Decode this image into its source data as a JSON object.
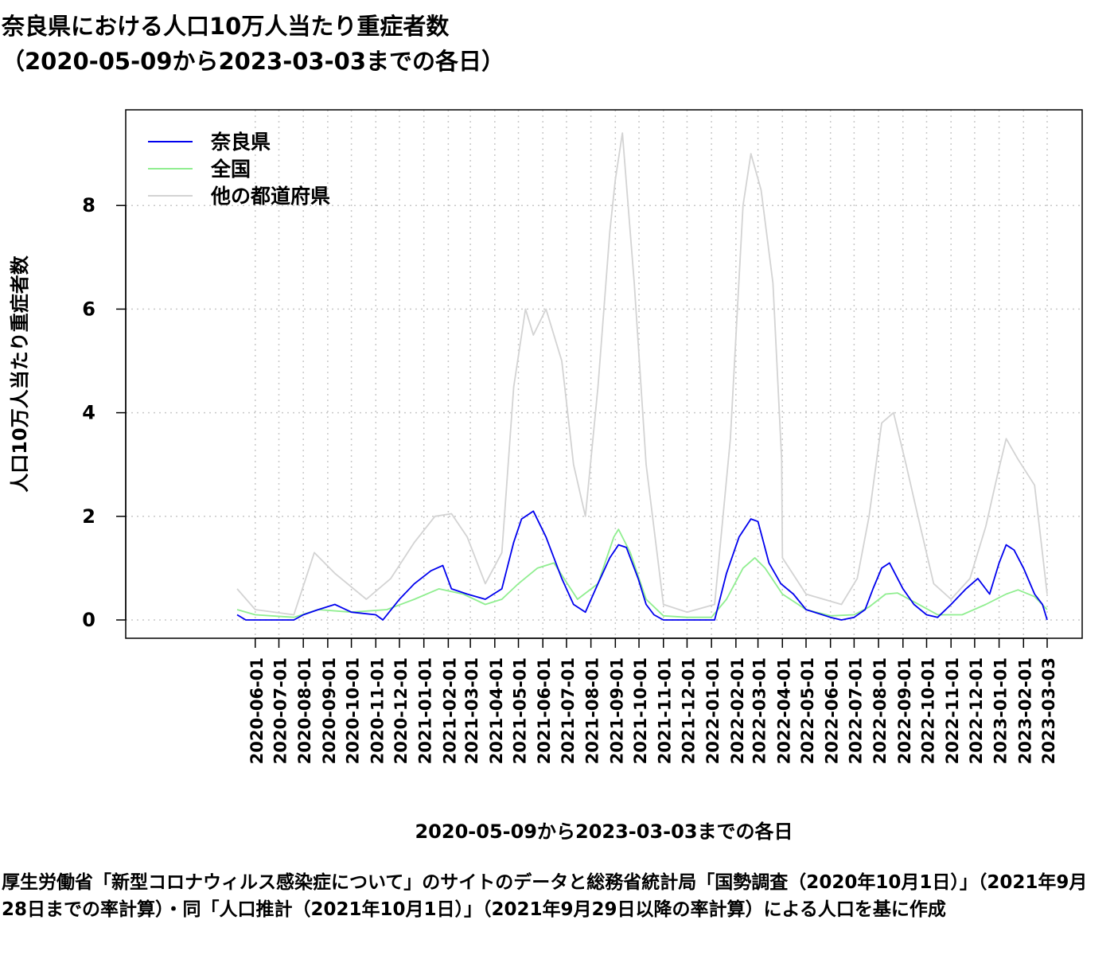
{
  "title_line1": "奈良県における人口10万人当たり重症者数",
  "title_line2": "（2020-05-09から2023-03-03までの各日）",
  "caption": "厚生労働省「新型コロナウィルス感染症について」のサイトのデータと総務省統計局「国勢調査（2020年10月1日）」（2021年9月28日までの率計算）・同「人口推計（2021年10月1日）」（2021年9月29日以降の率計算）による人口を基に作成",
  "colors": {
    "nara": "#0000ee",
    "national": "#90ee90",
    "others": "#d3d3d3"
  },
  "chart_data": {
    "type": "line",
    "xlabel": "2020-05-09から2023-03-03までの各日",
    "ylabel": "人口10万人当たり重症者数",
    "x_range": [
      "2020-05-09",
      "2023-03-03"
    ],
    "ylim": [
      0,
      9.5
    ],
    "yticks": [
      0,
      2,
      4,
      6,
      8
    ],
    "grid": true,
    "legend_position": "top-left",
    "legend": [
      "奈良県",
      "全国",
      "他の都道府県"
    ],
    "x_ticks": [
      "2020-06-01",
      "2020-07-01",
      "2020-08-01",
      "2020-09-01",
      "2020-10-01",
      "2020-11-01",
      "2020-12-01",
      "2021-01-01",
      "2021-02-01",
      "2021-03-01",
      "2021-04-01",
      "2021-05-01",
      "2021-06-01",
      "2021-07-01",
      "2021-08-01",
      "2021-09-01",
      "2021-10-01",
      "2021-11-01",
      "2021-12-01",
      "2022-01-01",
      "2022-02-01",
      "2022-03-01",
      "2022-04-01",
      "2022-05-01",
      "2022-06-01",
      "2022-07-01",
      "2022-08-01",
      "2022-09-01",
      "2022-10-01",
      "2022-11-01",
      "2022-12-01",
      "2023-01-01",
      "2023-02-01",
      "2023-03-03"
    ],
    "series": [
      {
        "name": "奈良県",
        "x": [
          "2020-05-09",
          "2020-05-20",
          "2020-07-20",
          "2020-08-01",
          "2020-08-20",
          "2020-09-10",
          "2020-10-01",
          "2020-11-01",
          "2020-11-10",
          "2020-12-01",
          "2020-12-20",
          "2021-01-10",
          "2021-01-25",
          "2021-02-05",
          "2021-02-25",
          "2021-03-20",
          "2021-04-10",
          "2021-04-25",
          "2021-05-05",
          "2021-05-20",
          "2021-06-05",
          "2021-06-25",
          "2021-07-10",
          "2021-07-25",
          "2021-08-10",
          "2021-08-25",
          "2021-09-05",
          "2021-09-15",
          "2021-09-30",
          "2021-10-10",
          "2021-10-20",
          "2021-11-01",
          "2021-12-01",
          "2022-01-05",
          "2022-01-20",
          "2022-02-05",
          "2022-02-20",
          "2022-03-01",
          "2022-03-15",
          "2022-03-30",
          "2022-04-15",
          "2022-05-01",
          "2022-06-01",
          "2022-06-15",
          "2022-07-01",
          "2022-07-15",
          "2022-07-25",
          "2022-08-05",
          "2022-08-15",
          "2022-09-01",
          "2022-09-15",
          "2022-10-01",
          "2022-10-15",
          "2022-11-01",
          "2022-11-20",
          "2022-12-05",
          "2022-12-20",
          "2023-01-01",
          "2023-01-10",
          "2023-01-20",
          "2023-02-01",
          "2023-02-15",
          "2023-02-25",
          "2023-03-03"
        ],
        "values": [
          0.1,
          0.0,
          0.0,
          0.1,
          0.2,
          0.3,
          0.15,
          0.1,
          0.0,
          0.4,
          0.7,
          0.95,
          1.05,
          0.6,
          0.5,
          0.4,
          0.6,
          1.5,
          1.95,
          2.1,
          1.6,
          0.8,
          0.3,
          0.15,
          0.7,
          1.2,
          1.45,
          1.4,
          0.8,
          0.3,
          0.1,
          0.0,
          0.0,
          0.0,
          0.9,
          1.6,
          1.95,
          1.9,
          1.1,
          0.7,
          0.5,
          0.2,
          0.05,
          0.0,
          0.05,
          0.2,
          0.6,
          1.0,
          1.1,
          0.6,
          0.3,
          0.1,
          0.05,
          0.3,
          0.6,
          0.8,
          0.5,
          1.1,
          1.45,
          1.35,
          1.0,
          0.5,
          0.3,
          0.0
        ]
      },
      {
        "name": "全国",
        "x": [
          "2020-05-09",
          "2020-06-01",
          "2020-07-20",
          "2020-08-20",
          "2020-10-01",
          "2020-11-15",
          "2020-12-20",
          "2021-01-20",
          "2021-02-20",
          "2021-03-20",
          "2021-04-10",
          "2021-05-01",
          "2021-05-25",
          "2021-06-15",
          "2021-07-15",
          "2021-08-10",
          "2021-08-30",
          "2021-09-05",
          "2021-09-20",
          "2021-10-10",
          "2021-11-01",
          "2021-12-01",
          "2022-01-01",
          "2022-01-20",
          "2022-02-10",
          "2022-02-25",
          "2022-03-10",
          "2022-04-01",
          "2022-05-01",
          "2022-06-01",
          "2022-07-01",
          "2022-07-20",
          "2022-08-10",
          "2022-08-25",
          "2022-09-15",
          "2022-10-15",
          "2022-11-15",
          "2022-12-15",
          "2023-01-10",
          "2023-01-25",
          "2023-02-15",
          "2023-03-03"
        ],
        "values": [
          0.2,
          0.1,
          0.05,
          0.2,
          0.15,
          0.2,
          0.4,
          0.6,
          0.5,
          0.3,
          0.4,
          0.7,
          1.0,
          1.1,
          0.4,
          0.7,
          1.6,
          1.75,
          1.3,
          0.4,
          0.08,
          0.05,
          0.05,
          0.4,
          1.0,
          1.2,
          1.0,
          0.5,
          0.2,
          0.08,
          0.1,
          0.25,
          0.5,
          0.52,
          0.35,
          0.1,
          0.1,
          0.3,
          0.5,
          0.58,
          0.45,
          0.2
        ]
      },
      {
        "name": "他の都道府県",
        "x": [
          "2020-05-09",
          "2020-06-01",
          "2020-07-20",
          "2020-08-15",
          "2020-09-10",
          "2020-10-20",
          "2020-11-20",
          "2020-12-20",
          "2021-01-15",
          "2021-02-05",
          "2021-02-25",
          "2021-03-20",
          "2021-04-10",
          "2021-04-25",
          "2021-05-10",
          "2021-05-20",
          "2021-06-05",
          "2021-06-25",
          "2021-07-10",
          "2021-07-25",
          "2021-08-10",
          "2021-08-25",
          "2021-09-01",
          "2021-09-10",
          "2021-09-25",
          "2021-10-10",
          "2021-11-01",
          "2021-12-01",
          "2022-01-05",
          "2022-01-25",
          "2022-02-10",
          "2022-02-20",
          "2022-03-05",
          "2022-03-20",
          "2022-03-31",
          "2022-04-01",
          "2022-05-01",
          "2022-06-15",
          "2022-07-05",
          "2022-07-20",
          "2022-08-05",
          "2022-08-20",
          "2022-09-05",
          "2022-09-20",
          "2022-10-10",
          "2022-11-01",
          "2022-11-25",
          "2022-12-15",
          "2022-12-30",
          "2023-01-10",
          "2023-01-25",
          "2023-02-15",
          "2023-03-03"
        ],
        "values": [
          0.6,
          0.2,
          0.1,
          1.3,
          0.9,
          0.4,
          0.8,
          1.5,
          2.0,
          2.05,
          1.6,
          0.7,
          1.3,
          4.5,
          6.0,
          5.5,
          6.0,
          5.0,
          3.0,
          2.0,
          4.5,
          7.5,
          8.5,
          9.4,
          6.5,
          3.0,
          0.3,
          0.15,
          0.3,
          3.5,
          8.0,
          9.0,
          8.3,
          6.5,
          3.1,
          1.2,
          0.5,
          0.3,
          0.8,
          2.0,
          3.8,
          4.0,
          3.0,
          2.0,
          0.7,
          0.4,
          0.8,
          1.8,
          2.8,
          3.5,
          3.1,
          2.6,
          0.5
        ]
      }
    ]
  }
}
